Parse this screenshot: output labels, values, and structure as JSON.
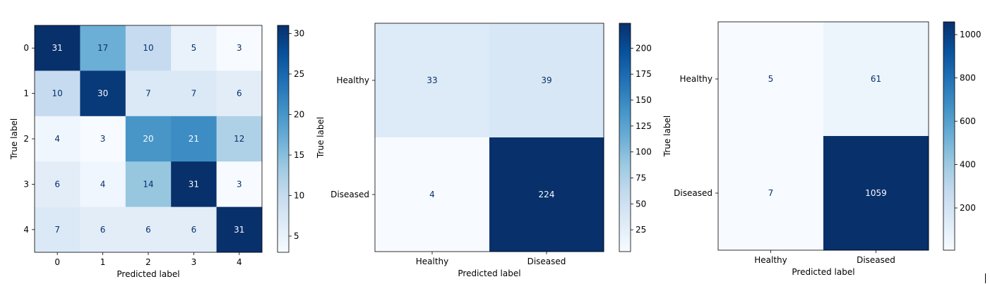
{
  "colors": {
    "cmap": [
      "#f7fbff",
      "#deebf7",
      "#c6dbef",
      "#9ecae1",
      "#6baed6",
      "#4292c6",
      "#2171b5",
      "#08519c",
      "#08306b"
    ],
    "light_text": "#f7fbff",
    "dark_text": "#08306b"
  },
  "chart_data": [
    {
      "type": "heatmap",
      "xlabel": "Predicted label",
      "ylabel": "True label",
      "x_categories": [
        "0",
        "1",
        "2",
        "3",
        "4"
      ],
      "y_categories": [
        "0",
        "1",
        "2",
        "3",
        "4"
      ],
      "matrix": [
        [
          31,
          17,
          10,
          5,
          3
        ],
        [
          10,
          30,
          7,
          7,
          6
        ],
        [
          4,
          3,
          20,
          21,
          12
        ],
        [
          6,
          4,
          14,
          31,
          3
        ],
        [
          7,
          6,
          6,
          6,
          31
        ]
      ],
      "colorbar": {
        "min": 3,
        "max": 31,
        "ticks": [
          5,
          10,
          15,
          20,
          25,
          30
        ]
      }
    },
    {
      "type": "heatmap",
      "xlabel": "Predicted label",
      "ylabel": "True label",
      "x_categories": [
        "Healthy",
        "Diseased"
      ],
      "y_categories": [
        "Healthy",
        "Diseased"
      ],
      "matrix": [
        [
          33,
          39
        ],
        [
          4,
          224
        ]
      ],
      "colorbar": {
        "min": 4,
        "max": 224,
        "ticks": [
          25,
          50,
          75,
          100,
          125,
          150,
          175,
          200
        ]
      }
    },
    {
      "type": "heatmap",
      "xlabel": "Predicted label",
      "ylabel": "True label",
      "x_categories": [
        "Healthy",
        "Diseased"
      ],
      "y_categories": [
        "Healthy",
        "Diseased"
      ],
      "matrix": [
        [
          5,
          61
        ],
        [
          7,
          1059
        ]
      ],
      "colorbar": {
        "min": 5,
        "max": 1059,
        "ticks": [
          200,
          400,
          600,
          800,
          1000
        ]
      }
    }
  ]
}
